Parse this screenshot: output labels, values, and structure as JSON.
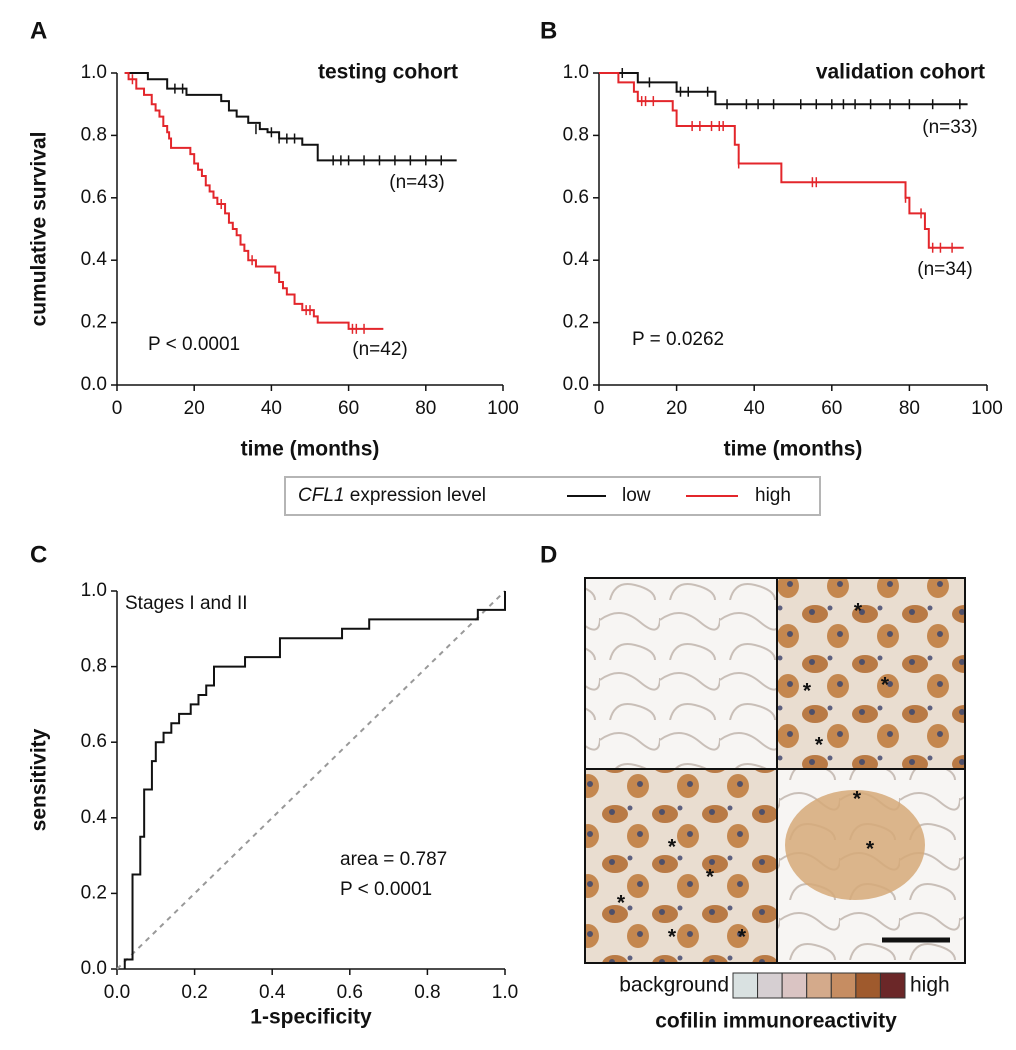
{
  "panel_labels": [
    "A",
    "B",
    "C",
    "D"
  ],
  "legend_title": [
    "CFL1",
    "expression level"
  ],
  "image_panel": {
    "marker": "*",
    "scale_low": "background",
    "scale_high": "high",
    "scale_title": "cofilin immunoreactivity",
    "scale_colors": [
      "#d9e1e1",
      "#d6cfd2",
      "#dac4c3",
      "#d4aa8b",
      "#c68d62",
      "#9f5a2d",
      "#6b2728"
    ]
  },
  "chart_data": [
    {
      "type": "step",
      "title": "testing cohort",
      "p_value": "P < 0.0001",
      "xlabel": "time (months)",
      "ylabel": "cumulative survival",
      "xlim": [
        0,
        100
      ],
      "ylim": [
        0,
        1
      ],
      "xticks": [
        0,
        20,
        40,
        60,
        80,
        100
      ],
      "yticks": [
        {
          "value": 0,
          "label": "0.0"
        },
        0.2,
        0.4,
        0.6,
        0.8,
        {
          "value": 1,
          "label": "1.0"
        }
      ],
      "series": [
        {
          "name": "low",
          "color": "#111111",
          "n_label": "(n=43)",
          "x": [
            2,
            8,
            13,
            18,
            27,
            29,
            31,
            34,
            37,
            39,
            42,
            48,
            52,
            88
          ],
          "values": [
            1.0,
            0.98,
            0.95,
            0.93,
            0.91,
            0.88,
            0.86,
            0.84,
            0.82,
            0.81,
            0.79,
            0.77,
            0.72,
            0.72
          ],
          "censored_x": [
            15,
            17,
            36,
            40,
            42,
            44,
            46,
            56,
            58,
            60,
            64,
            68,
            72,
            76,
            80,
            84
          ],
          "censored_y": [
            0.95,
            0.95,
            0.82,
            0.81,
            0.79,
            0.79,
            0.79,
            0.72,
            0.72,
            0.72,
            0.72,
            0.72,
            0.72,
            0.72,
            0.72,
            0.72
          ]
        },
        {
          "name": "high",
          "color": "#e3262b",
          "n_label": "(n=42)",
          "x": [
            2,
            3,
            5,
            7,
            9,
            10,
            11,
            12,
            13,
            13.5,
            14,
            19,
            20,
            21,
            22,
            23,
            24,
            25,
            26,
            28,
            29,
            30,
            31,
            32,
            33,
            34,
            36,
            41,
            42,
            43,
            44,
            46,
            48,
            51,
            52,
            60,
            69
          ],
          "values": [
            1.0,
            0.98,
            0.95,
            0.93,
            0.9,
            0.88,
            0.86,
            0.83,
            0.81,
            0.79,
            0.76,
            0.74,
            0.71,
            0.69,
            0.67,
            0.64,
            0.62,
            0.6,
            0.58,
            0.55,
            0.52,
            0.5,
            0.48,
            0.45,
            0.43,
            0.4,
            0.38,
            0.36,
            0.33,
            0.31,
            0.29,
            0.26,
            0.24,
            0.22,
            0.2,
            0.18,
            0.18
          ],
          "censored_x": [
            4,
            27,
            35,
            49,
            50,
            61,
            62,
            64
          ],
          "censored_y": [
            0.98,
            0.58,
            0.4,
            0.24,
            0.24,
            0.18,
            0.18,
            0.18
          ]
        }
      ]
    },
    {
      "type": "step",
      "title": "validation cohort",
      "p_value": "P = 0.0262",
      "xlabel": "time (months)",
      "xlim": [
        0,
        100
      ],
      "ylim": [
        0,
        1
      ],
      "xticks": [
        0,
        20,
        40,
        60,
        80,
        100
      ],
      "yticks": [
        {
          "value": 0,
          "label": "0.0"
        },
        0.2,
        0.4,
        0.6,
        0.8,
        {
          "value": 1,
          "label": "1.0"
        }
      ],
      "series": [
        {
          "name": "low",
          "color": "#111111",
          "n_label": "(n=33)",
          "x": [
            0,
            10,
            20,
            30,
            95
          ],
          "values": [
            1.0,
            0.97,
            0.94,
            0.9,
            0.9
          ],
          "censored_x": [
            6,
            13,
            21,
            23,
            28,
            33,
            38,
            41,
            45,
            52,
            56,
            60,
            63,
            66,
            70,
            75,
            80,
            86,
            93
          ],
          "censored_y": [
            1.0,
            0.97,
            0.94,
            0.94,
            0.94,
            0.9,
            0.9,
            0.9,
            0.9,
            0.9,
            0.9,
            0.9,
            0.9,
            0.9,
            0.9,
            0.9,
            0.9,
            0.9,
            0.9
          ]
        },
        {
          "name": "high",
          "color": "#e3262b",
          "n_label": "(n=34)",
          "x": [
            0,
            5,
            9,
            10,
            19,
            20,
            35,
            36,
            47,
            79,
            80,
            84,
            85,
            94
          ],
          "values": [
            1.0,
            0.97,
            0.94,
            0.91,
            0.88,
            0.83,
            0.77,
            0.71,
            0.65,
            0.6,
            0.55,
            0.5,
            0.44,
            0.44
          ],
          "censored_x": [
            11,
            12,
            14,
            24,
            26,
            29,
            31,
            32,
            36,
            55,
            56,
            79,
            83,
            86,
            88,
            91
          ],
          "censored_y": [
            0.91,
            0.91,
            0.91,
            0.83,
            0.83,
            0.83,
            0.83,
            0.83,
            0.71,
            0.65,
            0.65,
            0.6,
            0.55,
            0.44,
            0.44,
            0.44
          ]
        }
      ]
    },
    {
      "type": "line",
      "title": "Stages I and II",
      "area_label": "area = 0.787",
      "p_value": "P < 0.0001",
      "xlabel": "1-specificity",
      "ylabel": "sensitivity",
      "xlim": [
        0,
        1
      ],
      "ylim": [
        0,
        1
      ],
      "xticks": [
        {
          "value": 0,
          "label": "0.0"
        },
        0.2,
        0.4,
        0.6,
        0.8,
        {
          "value": 1,
          "label": "1.0"
        }
      ],
      "yticks": [
        {
          "value": 0,
          "label": "0.0"
        },
        0.2,
        0.4,
        0.6,
        0.8,
        {
          "value": 1,
          "label": "1.0"
        }
      ],
      "reference_color": "#999999",
      "series": [
        {
          "color": "#111111",
          "x": [
            0.02,
            0.02,
            0.04,
            0.04,
            0.06,
            0.06,
            0.07,
            0.07,
            0.09,
            0.09,
            0.1,
            0.1,
            0.12,
            0.12,
            0.14,
            0.14,
            0.16,
            0.16,
            0.19,
            0.19,
            0.21,
            0.21,
            0.23,
            0.23,
            0.25,
            0.25,
            0.33,
            0.33,
            0.42,
            0.42,
            0.58,
            0.58,
            0.65,
            0.65,
            0.93,
            0.93,
            1.0,
            1.0
          ],
          "values": [
            0,
            0.025,
            0.025,
            0.25,
            0.25,
            0.35,
            0.35,
            0.475,
            0.475,
            0.55,
            0.55,
            0.6,
            0.6,
            0.625,
            0.625,
            0.65,
            0.65,
            0.675,
            0.675,
            0.7,
            0.7,
            0.725,
            0.725,
            0.75,
            0.75,
            0.8,
            0.8,
            0.825,
            0.825,
            0.875,
            0.875,
            0.9,
            0.9,
            0.925,
            0.925,
            0.95,
            0.95,
            1.0
          ]
        }
      ]
    }
  ]
}
